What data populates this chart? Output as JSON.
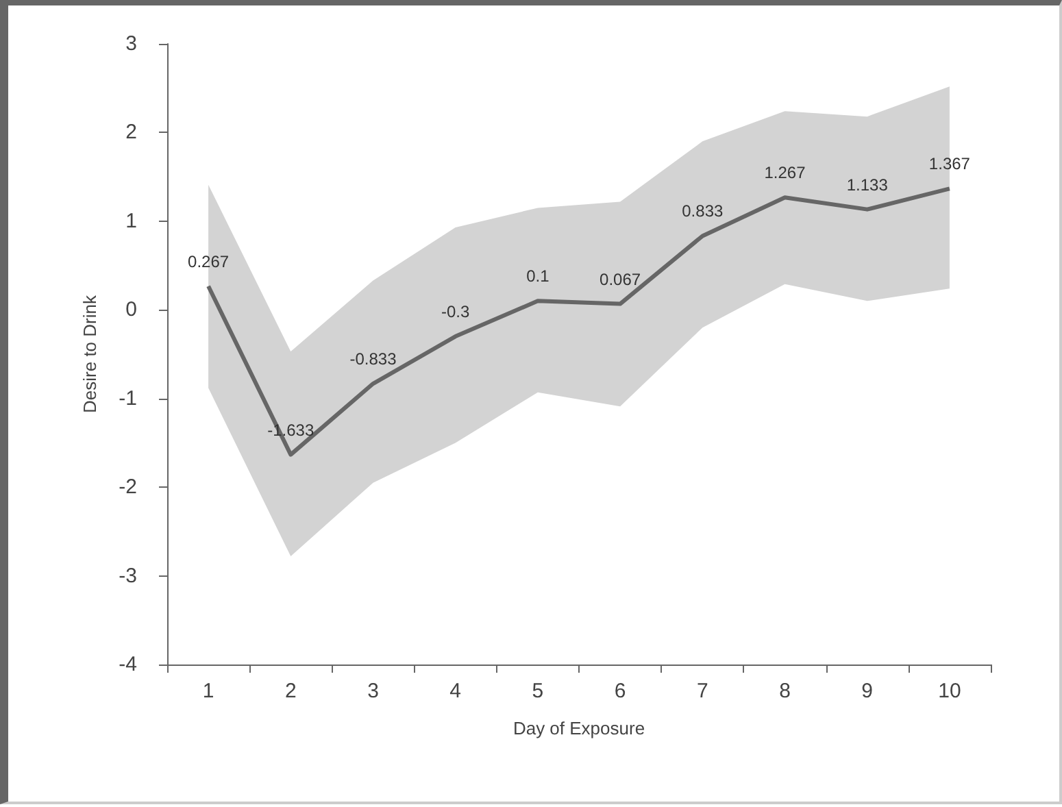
{
  "chart_data": {
    "type": "line",
    "xlabel": "Day of Exposure",
    "ylabel": "Desire to Drink",
    "categories": [
      "1",
      "2",
      "3",
      "4",
      "5",
      "6",
      "7",
      "8",
      "9",
      "10"
    ],
    "series": [
      {
        "color": "#666666",
        "values": [
          0.267,
          -1.633,
          -0.833,
          -0.3,
          0.1,
          0.067,
          0.833,
          1.267,
          1.133,
          1.367
        ],
        "lower": [
          -0.88,
          -2.78,
          -1.95,
          -1.5,
          -0.93,
          -1.09,
          -0.2,
          0.29,
          0.1,
          0.24
        ],
        "upper": [
          1.41,
          -0.47,
          0.33,
          0.93,
          1.15,
          1.22,
          1.9,
          2.24,
          2.18,
          2.52
        ]
      }
    ],
    "ylim": [
      -4,
      3
    ],
    "yticks": [
      -4,
      -3,
      -2,
      -1,
      0,
      1,
      2,
      3
    ],
    "data_labels": true,
    "marker": "none",
    "line_style": "solid"
  }
}
